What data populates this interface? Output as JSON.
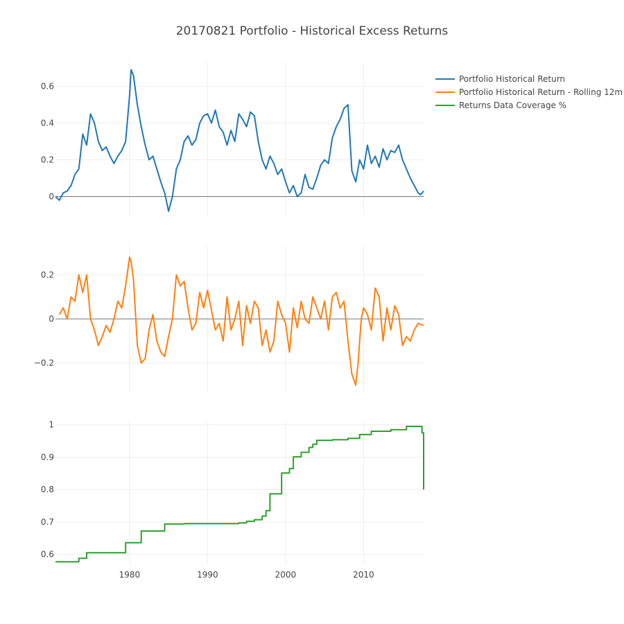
{
  "title": "20170821 Portfolio - Historical Excess Returns",
  "colors": {
    "blue": "#1f77b4",
    "orange": "#ff7f0e",
    "green": "#2ca02c",
    "text": "#444444",
    "grid": "#eeeeee"
  },
  "legend": [
    {
      "label": "Portfolio Historical Return",
      "color": "#1f77b4"
    },
    {
      "label": "Portfolio Historical Return - Rolling 12m",
      "color": "#ff7f0e"
    },
    {
      "label": "Returns Data Coverage %",
      "color": "#2ca02c"
    }
  ],
  "xaxis": {
    "range": [
      1970.5,
      2017.7
    ],
    "ticks": [
      1980,
      1990,
      2000,
      2010
    ]
  },
  "chart_data": [
    {
      "type": "line",
      "name": "Portfolio Historical Return",
      "color": "#1f77b4",
      "yticks": [
        0,
        0.2,
        0.4,
        0.6
      ],
      "ytick_labels": [
        "0",
        "0.2",
        "0.4",
        "0.6"
      ],
      "ylim": [
        -0.1,
        0.73
      ],
      "x": [
        1970.5,
        1971,
        1971.5,
        1972,
        1972.5,
        1973,
        1973.5,
        1974,
        1974.5,
        1975,
        1975.5,
        1976,
        1976.5,
        1977,
        1977.5,
        1978,
        1978.5,
        1979,
        1979.5,
        1980,
        1980.2,
        1980.5,
        1981,
        1981.5,
        1982,
        1982.5,
        1983,
        1983.5,
        1984,
        1984.5,
        1985,
        1985.5,
        1986,
        1986.5,
        1987,
        1987.5,
        1988,
        1988.5,
        1989,
        1989.5,
        1990,
        1990.5,
        1991,
        1991.5,
        1992,
        1992.5,
        1993,
        1993.5,
        1994,
        1994.5,
        1995,
        1995.5,
        1996,
        1996.5,
        1997,
        1997.5,
        1998,
        1998.5,
        1999,
        1999.5,
        2000,
        2000.5,
        2001,
        2001.5,
        2002,
        2002.5,
        2003,
        2003.5,
        2004,
        2004.5,
        2005,
        2005.5,
        2006,
        2006.5,
        2007,
        2007.5,
        2008,
        2008.5,
        2009,
        2009.5,
        2010,
        2010.5,
        2011,
        2011.5,
        2012,
        2012.5,
        2013,
        2013.5,
        2014,
        2014.5,
        2015,
        2015.5,
        2016,
        2016.5,
        2017,
        2017.3,
        2017.7
      ],
      "y": [
        0.0,
        -0.02,
        0.02,
        0.03,
        0.06,
        0.12,
        0.15,
        0.34,
        0.28,
        0.45,
        0.4,
        0.3,
        0.25,
        0.27,
        0.22,
        0.18,
        0.22,
        0.25,
        0.3,
        0.55,
        0.69,
        0.66,
        0.5,
        0.38,
        0.28,
        0.2,
        0.22,
        0.15,
        0.08,
        0.02,
        -0.08,
        0.0,
        0.15,
        0.2,
        0.3,
        0.33,
        0.28,
        0.31,
        0.4,
        0.44,
        0.45,
        0.4,
        0.47,
        0.38,
        0.35,
        0.28,
        0.36,
        0.3,
        0.45,
        0.42,
        0.38,
        0.46,
        0.44,
        0.3,
        0.2,
        0.15,
        0.22,
        0.18,
        0.12,
        0.15,
        0.08,
        0.02,
        0.06,
        0.0,
        0.02,
        0.12,
        0.05,
        0.04,
        0.1,
        0.17,
        0.2,
        0.18,
        0.32,
        0.38,
        0.42,
        0.48,
        0.5,
        0.14,
        0.08,
        0.2,
        0.15,
        0.28,
        0.18,
        0.22,
        0.16,
        0.26,
        0.2,
        0.25,
        0.24,
        0.28,
        0.2,
        0.15,
        0.1,
        0.06,
        0.02,
        0.01,
        0.03
      ]
    },
    {
      "type": "line",
      "name": "Portfolio Historical Return - Rolling 12m",
      "color": "#ff7f0e",
      "yticks": [
        -0.2,
        0,
        0.2
      ],
      "ytick_labels": [
        "−0.2",
        "0",
        "0.2"
      ],
      "ylim": [
        -0.33,
        0.33
      ],
      "x": [
        1971,
        1971.5,
        1972,
        1972.5,
        1973,
        1973.5,
        1974,
        1974.5,
        1975,
        1975.5,
        1976,
        1976.5,
        1977,
        1977.5,
        1978,
        1978.5,
        1979,
        1979.5,
        1980,
        1980.2,
        1980.5,
        1981,
        1981.5,
        1982,
        1982.5,
        1983,
        1983.5,
        1984,
        1984.5,
        1985,
        1985.5,
        1986,
        1986.5,
        1987,
        1987.5,
        1988,
        1988.5,
        1989,
        1989.5,
        1990,
        1990.5,
        1991,
        1991.5,
        1992,
        1992.5,
        1993,
        1993.5,
        1994,
        1994.5,
        1995,
        1995.5,
        1996,
        1996.5,
        1997,
        1997.5,
        1998,
        1998.5,
        1999,
        1999.5,
        2000,
        2000.5,
        2001,
        2001.5,
        2002,
        2002.5,
        2003,
        2003.5,
        2004,
        2004.5,
        2005,
        2005.5,
        2006,
        2006.5,
        2007,
        2007.5,
        2008,
        2008.5,
        2009,
        2009.3,
        2009.7,
        2010,
        2010.5,
        2011,
        2011.5,
        2012,
        2012.5,
        2013,
        2013.5,
        2014,
        2014.5,
        2015,
        2015.5,
        2016,
        2016.5,
        2017,
        2017.7
      ],
      "y": [
        0.02,
        0.05,
        0.0,
        0.1,
        0.08,
        0.2,
        0.12,
        0.2,
        0.0,
        -0.05,
        -0.12,
        -0.08,
        -0.03,
        -0.06,
        0.0,
        0.08,
        0.05,
        0.15,
        0.28,
        0.26,
        0.18,
        -0.12,
        -0.2,
        -0.18,
        -0.05,
        0.02,
        -0.1,
        -0.15,
        -0.17,
        -0.08,
        0.0,
        0.2,
        0.15,
        0.17,
        0.05,
        -0.05,
        -0.02,
        0.12,
        0.05,
        0.13,
        0.04,
        -0.05,
        -0.02,
        -0.1,
        0.1,
        -0.05,
        0.0,
        0.08,
        -0.12,
        0.06,
        -0.02,
        0.08,
        0.05,
        -0.12,
        -0.05,
        -0.15,
        -0.1,
        0.08,
        0.02,
        -0.02,
        -0.15,
        0.05,
        -0.04,
        0.08,
        0.0,
        -0.02,
        0.1,
        0.05,
        0.0,
        0.08,
        -0.05,
        0.1,
        0.12,
        0.05,
        0.08,
        -0.1,
        -0.25,
        -0.3,
        -0.2,
        0.0,
        0.05,
        0.02,
        -0.05,
        0.14,
        0.1,
        -0.1,
        0.05,
        -0.05,
        0.06,
        0.02,
        -0.12,
        -0.08,
        -0.1,
        -0.05,
        -0.02,
        -0.03
      ]
    },
    {
      "type": "line",
      "name": "Returns Data Coverage %",
      "color": "#2ca02c",
      "shape": "step",
      "yticks": [
        0.6,
        0.7,
        0.8,
        0.9,
        1
      ],
      "ytick_labels": [
        "0.6",
        "0.7",
        "0.8",
        "0.9",
        "1"
      ],
      "ylim": [
        0.567,
        1.01
      ],
      "x": [
        1970.5,
        1973.5,
        1974.5,
        1979.5,
        1981.5,
        1984.5,
        1987,
        1994,
        1995,
        1996,
        1997,
        1997.5,
        1998,
        1999.5,
        2000.5,
        2001,
        2002,
        2003,
        2003.5,
        2004,
        2006,
        2008,
        2009.5,
        2011,
        2013.5,
        2015.5,
        2017.3,
        2017.5,
        2017.7
      ],
      "y": [
        0.577,
        0.588,
        0.605,
        0.636,
        0.672,
        0.694,
        0.695,
        0.697,
        0.702,
        0.707,
        0.718,
        0.735,
        0.787,
        0.851,
        0.865,
        0.901,
        0.915,
        0.93,
        0.94,
        0.952,
        0.954,
        0.958,
        0.97,
        0.98,
        0.985,
        0.995,
        0.995,
        0.975,
        0.8
      ]
    }
  ]
}
